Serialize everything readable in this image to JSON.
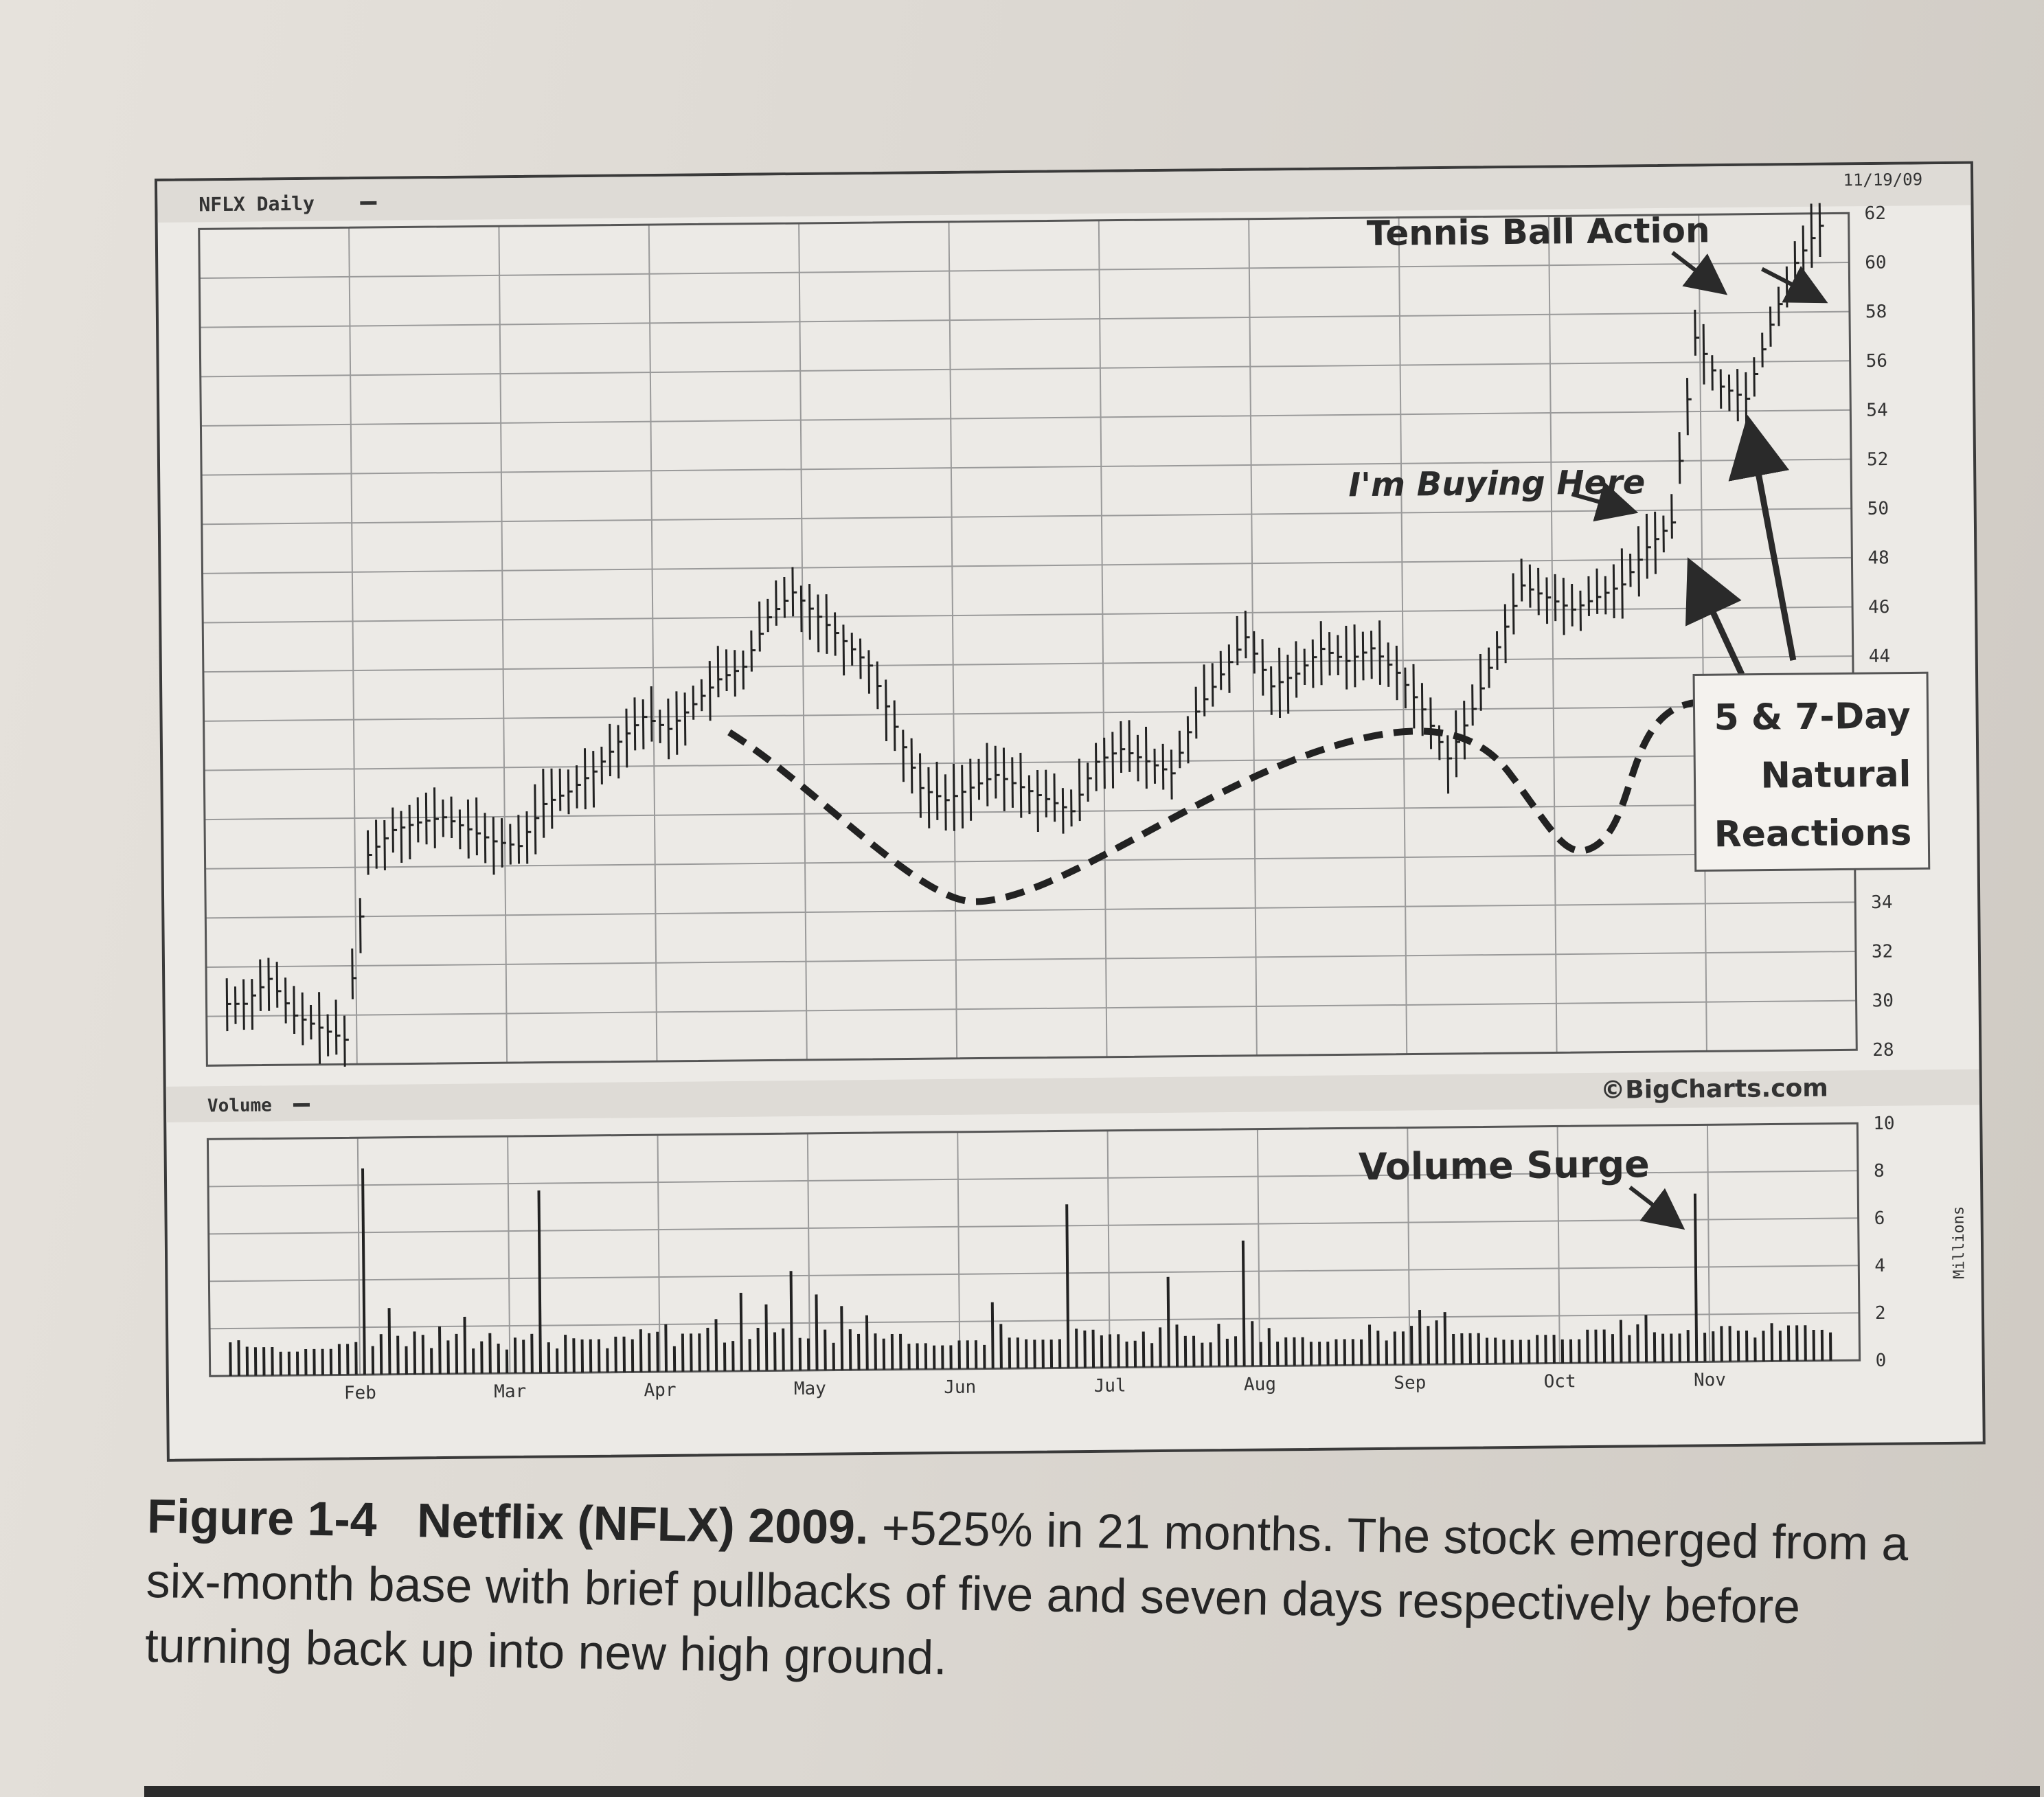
{
  "chart": {
    "ticker_label": "NFLX Daily",
    "volume_label": "Volume",
    "date_stamp": "11/19/09",
    "source": "©BigCharts.com",
    "volume_units": "Millions",
    "price_axis_ticks": [
      "62",
      "60",
      "58",
      "56",
      "54",
      "52",
      "50",
      "48",
      "46",
      "44",
      "34",
      "32",
      "30",
      "28"
    ],
    "volume_axis_ticks": [
      "10",
      "8",
      "6",
      "4",
      "2",
      "0"
    ],
    "month_labels": [
      "Feb",
      "Mar",
      "Apr",
      "May",
      "Jun",
      "Jul",
      "Aug",
      "Sep",
      "Oct",
      "Nov"
    ]
  },
  "annotations": {
    "tennis_ball": "Tennis Ball Action",
    "buying_here": "I'm Buying Here",
    "reactions": [
      "5 & 7-Day",
      "Natural",
      "Reactions"
    ],
    "volume_surge": "Volume Surge"
  },
  "caption": {
    "figure_number": "Figure 1-4",
    "figure_title": "Netflix (NFLX) 2009.",
    "text": "+525% in 21 months. The stock emerged from a six-month base with brief pullbacks of five and seven days respectively before turning back up into new high ground."
  },
  "chart_data": {
    "type": "bar",
    "title": "NFLX Daily",
    "xlabel": "",
    "ylabel": "",
    "price_axis": {
      "ylim": [
        28,
        62
      ]
    },
    "volume_axis": {
      "ylim": [
        0,
        10
      ],
      "units": "Millions"
    },
    "months": [
      "Feb",
      "Mar",
      "Apr",
      "May",
      "Jun",
      "Jul",
      "Aug",
      "Sep",
      "Oct",
      "Nov"
    ],
    "price_close_weekly": [
      30.5,
      31.5,
      30.0,
      29.5,
      29.0,
      36.5,
      37.5,
      37.8,
      38.0,
      37.5,
      37.0,
      36.8,
      38.5,
      39.0,
      39.8,
      41.0,
      42.0,
      41.5,
      42.5,
      43.5,
      44.0,
      46.0,
      47.0,
      46.0,
      45.0,
      44.0,
      41.5,
      39.0,
      38.5,
      39.0,
      39.5,
      39.0,
      38.5,
      38.0,
      40.0,
      40.5,
      40.0,
      39.5,
      42.0,
      43.5,
      45.0,
      43.0,
      43.5,
      44.5,
      44.0,
      44.5,
      43.5,
      42.0,
      40.0,
      42.0,
      44.5,
      47.0,
      46.5,
      46.0,
      46.5,
      47.0,
      48.5,
      49.5,
      57.0,
      55.0,
      54.5,
      57.5,
      60.0,
      61.5
    ],
    "volume_millions": [
      1.5,
      1.2,
      1.0,
      1.1,
      1.3,
      8.7,
      2.8,
      1.8,
      2.0,
      2.4,
      1.7,
      1.5,
      7.7,
      1.6,
      1.4,
      1.5,
      1.8,
      2.0,
      1.6,
      2.2,
      3.3,
      2.8,
      4.2,
      3.2,
      2.7,
      2.3,
      1.5,
      1.1,
      1.0,
      1.2,
      2.8,
      1.3,
      1.2,
      6.9,
      1.6,
      1.4,
      1.5,
      3.8,
      1.3,
      1.8,
      5.3,
      1.6,
      1.2,
      1.0,
      1.1,
      1.7,
      1.4,
      2.3,
      2.2,
      1.3,
      1.1,
      1.0,
      1.2,
      1.0,
      1.4,
      1.8,
      2.0,
      1.2,
      7.1,
      1.5,
      1.3,
      1.6,
      1.5,
      1.3
    ]
  }
}
